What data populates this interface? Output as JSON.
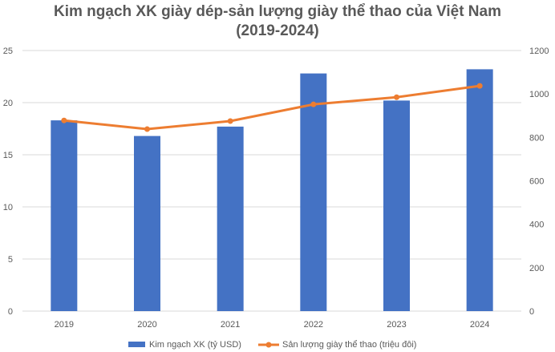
{
  "chart_data": {
    "type": "bar+line",
    "title_line1": "Kim ngạch XK giày dép-sản lượng giày thể thao của Việt Nam",
    "title_line2": "(2019-2024)",
    "categories": [
      "2019",
      "2020",
      "2021",
      "2022",
      "2023",
      "2024"
    ],
    "series": [
      {
        "name": "Kim ngạch XK (tỷ USD)",
        "type": "bar",
        "axis": "left",
        "color": "#4472C4",
        "values": [
          18.3,
          16.8,
          17.7,
          22.8,
          20.2,
          23.2
        ]
      },
      {
        "name": "Sản lượng giày thể thao (triệu đôi)",
        "type": "line",
        "axis": "right",
        "color": "#ED7D31",
        "values": [
          878,
          838,
          875,
          952,
          985,
          1037
        ]
      }
    ],
    "left_axis": {
      "range": [
        0,
        25
      ],
      "ticks": [
        "0",
        "5",
        "10",
        "15",
        "20",
        "25"
      ]
    },
    "right_axis": {
      "range": [
        0,
        1200
      ],
      "ticks": [
        "0",
        "200",
        "400",
        "600",
        "800",
        "1000",
        "1200"
      ]
    },
    "grid": true,
    "legend_position": "bottom"
  }
}
